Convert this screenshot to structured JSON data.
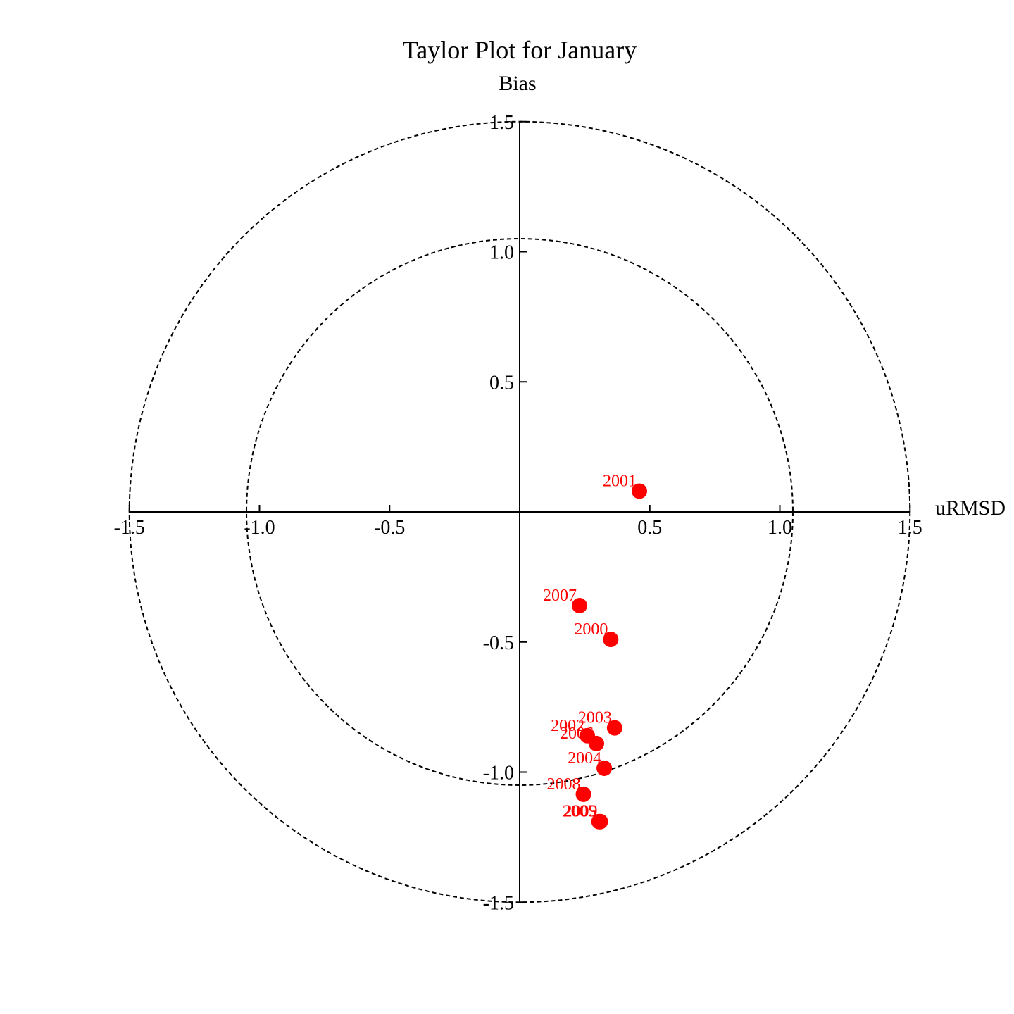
{
  "chart_data": {
    "type": "scatter",
    "title": "Taylor Plot for January",
    "xlabel": "uRMSD",
    "ylabel": "Bias",
    "xlim": [
      -1.5,
      1.5
    ],
    "ylim": [
      -1.5,
      1.5
    ],
    "x_ticks": [
      "-1.5",
      "-1.0",
      "-0.5",
      "0.5",
      "1.0",
      "1.5"
    ],
    "y_ticks": [
      "1.5",
      "1.0",
      "0.5",
      "-0.5",
      "-1.0",
      "-1.5"
    ],
    "reference_circles": [
      1.05,
      1.5
    ],
    "marker_color": "#ff0000",
    "points": [
      {
        "label": "2001",
        "x": 0.46,
        "y": 0.08
      },
      {
        "label": "2007",
        "x": 0.23,
        "y": -0.36
      },
      {
        "label": "2000",
        "x": 0.35,
        "y": -0.49
      },
      {
        "label": "2003",
        "x": 0.365,
        "y": -0.83
      },
      {
        "label": "2002",
        "x": 0.26,
        "y": -0.86
      },
      {
        "label": "2006",
        "x": 0.295,
        "y": -0.89
      },
      {
        "label": "2004",
        "x": 0.325,
        "y": -0.985
      },
      {
        "label": "2008",
        "x": 0.245,
        "y": -1.085
      },
      {
        "label": "2005",
        "x": 0.305,
        "y": -1.19
      },
      {
        "label": "2009",
        "x": 0.31,
        "y": -1.19
      }
    ]
  }
}
